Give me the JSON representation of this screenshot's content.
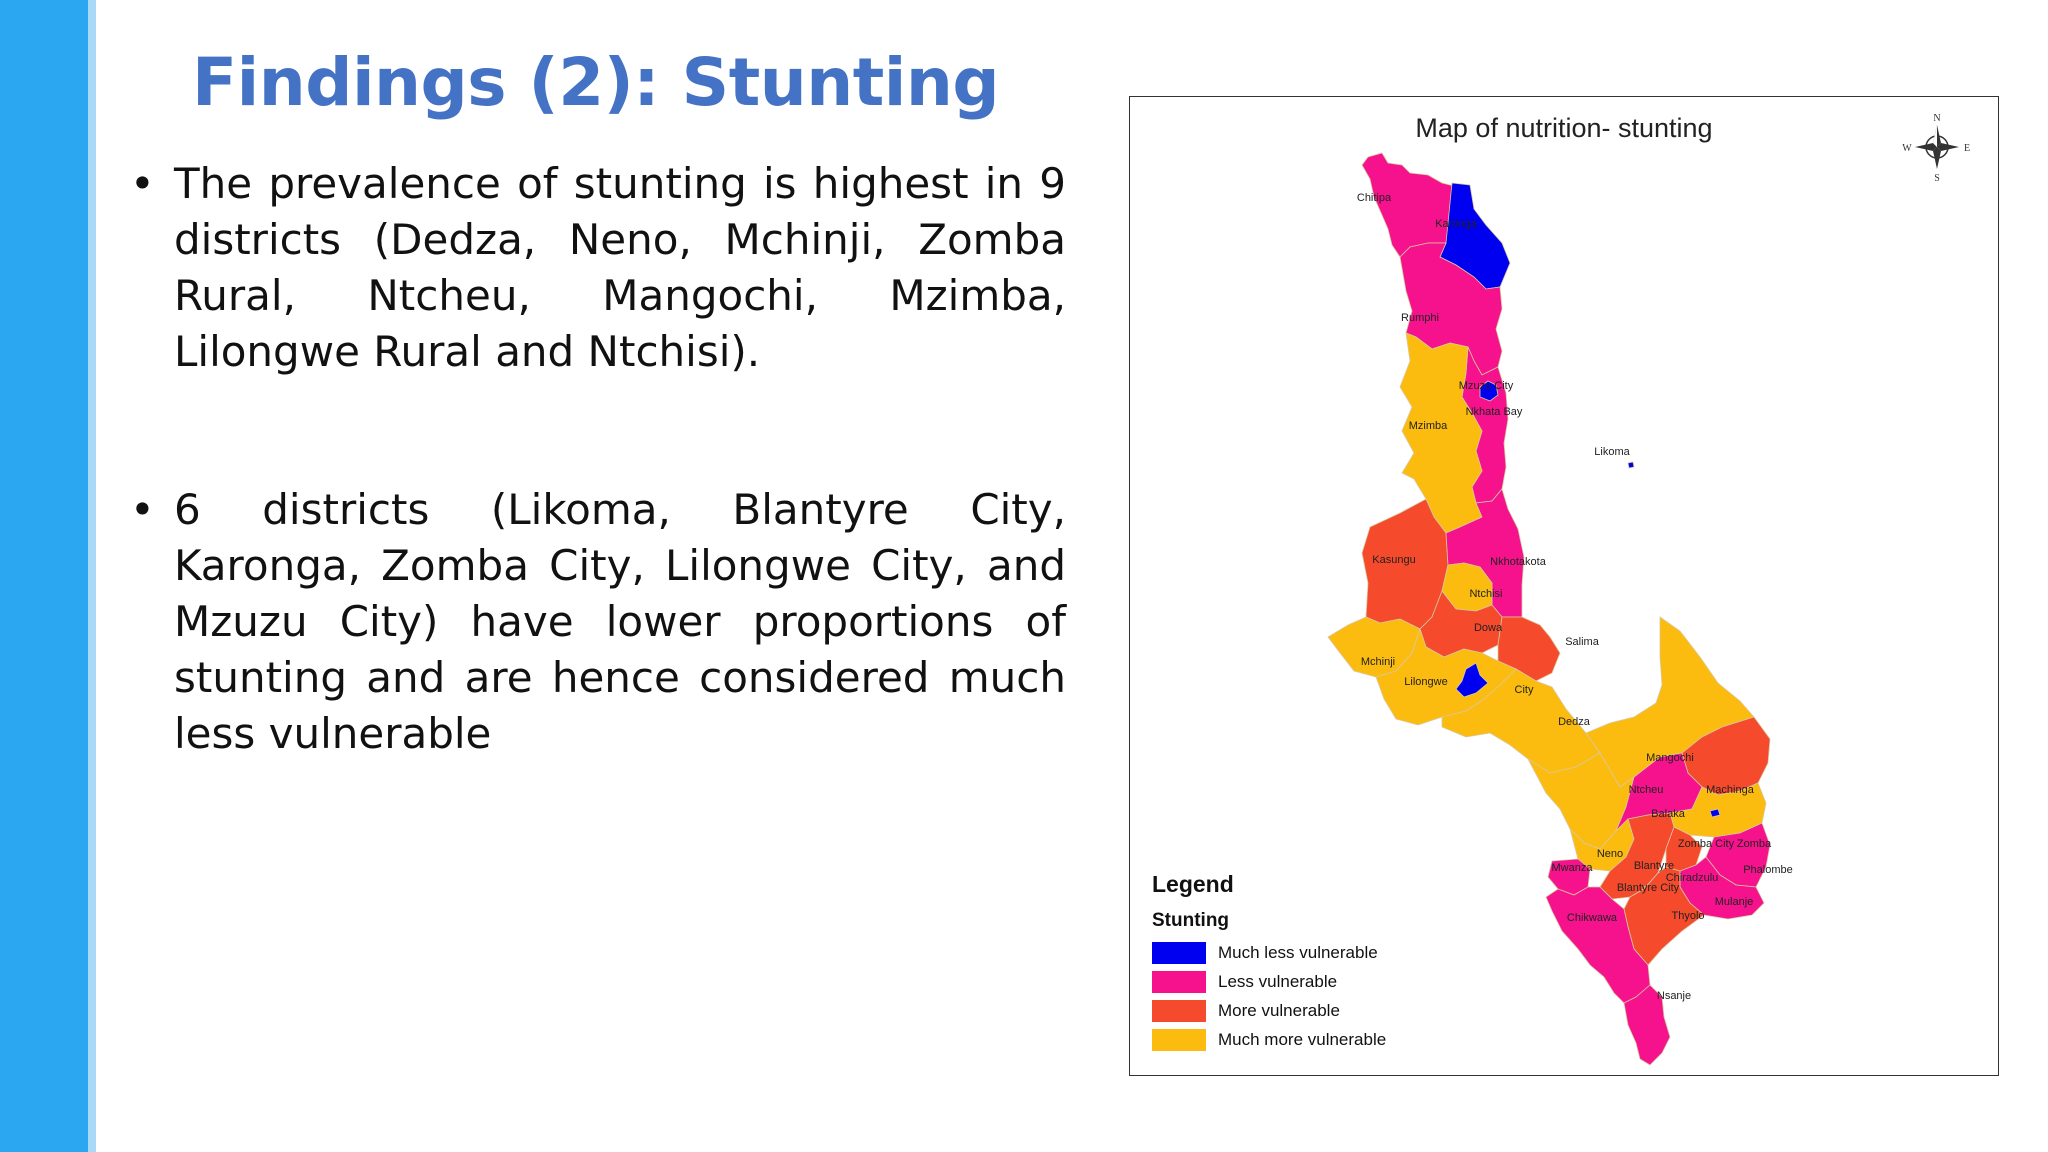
{
  "slide": {
    "title": "Findings (2): Stunting",
    "bullets": [
      "The prevalence of stunting is highest in 9 districts (Dedza, Neno, Mchinji, Zomba Rural, Ntcheu, Mangochi, Mzimba, Lilongwe Rural and Ntchisi).",
      "6 districts (Likoma, Blantyre City, Karonga, Zomba City, Lilongwe City, and Mzuzu City) have lower proportions of stunting and are hence considered much less vulnerable"
    ]
  },
  "map": {
    "title": "Map of nutrition- stunting",
    "compass": {
      "n": "N",
      "s": "S",
      "e": "E",
      "w": "W"
    },
    "legend": {
      "title": "Legend",
      "subtitle": "Stunting",
      "items": [
        {
          "label": "Much less vulnerable",
          "color": "#0000f0"
        },
        {
          "label": "Less vulnerable",
          "color": "#f5128c"
        },
        {
          "label": "More vulnerable",
          "color": "#f54a2c"
        },
        {
          "label": "Much more vulnerable",
          "color": "#fbbc0f"
        }
      ]
    },
    "districts": [
      {
        "name": "Chitipa",
        "category": "Less vulnerable"
      },
      {
        "name": "Karonga",
        "category": "Much less vulnerable"
      },
      {
        "name": "Rumphi",
        "category": "Less vulnerable"
      },
      {
        "name": "Mzuzu City",
        "category": "Much less vulnerable"
      },
      {
        "name": "Nkhata Bay",
        "category": "Less vulnerable"
      },
      {
        "name": "Mzimba",
        "category": "Much more vulnerable"
      },
      {
        "name": "Likoma",
        "category": "Much less vulnerable"
      },
      {
        "name": "Kasungu",
        "category": "More vulnerable"
      },
      {
        "name": "Nkhotakota",
        "category": "Less vulnerable"
      },
      {
        "name": "Ntchisi",
        "category": "Much more vulnerable"
      },
      {
        "name": "Dowa",
        "category": "More vulnerable"
      },
      {
        "name": "Mchinji",
        "category": "Much more vulnerable"
      },
      {
        "name": "Salima",
        "category": "More vulnerable"
      },
      {
        "name": "Lilongwe",
        "category": "Much more vulnerable"
      },
      {
        "name": "City",
        "category": "Much less vulnerable"
      },
      {
        "name": "Dedza",
        "category": "Much more vulnerable"
      },
      {
        "name": "Mangochi",
        "category": "Much more vulnerable"
      },
      {
        "name": "Ntcheu",
        "category": "Much more vulnerable"
      },
      {
        "name": "Machinga",
        "category": "More vulnerable"
      },
      {
        "name": "Balaka",
        "category": "Less vulnerable"
      },
      {
        "name": "Neno",
        "category": "Much more vulnerable"
      },
      {
        "name": "Mwanza",
        "category": "Less vulnerable"
      },
      {
        "name": "Zomba City",
        "category": "Much less vulnerable"
      },
      {
        "name": "Zomba",
        "category": "Much more vulnerable"
      },
      {
        "name": "Blantyre",
        "category": "More vulnerable"
      },
      {
        "name": "Chiradzulu",
        "category": "More vulnerable"
      },
      {
        "name": "Phalombe",
        "category": "Less vulnerable"
      },
      {
        "name": "Blantyre City",
        "category": "Much less vulnerable"
      },
      {
        "name": "Mulanje",
        "category": "Less vulnerable"
      },
      {
        "name": "Chikwawa",
        "category": "Less vulnerable"
      },
      {
        "name": "Thyolo",
        "category": "More vulnerable"
      },
      {
        "name": "Nsanje",
        "category": "Less vulnerable"
      }
    ]
  }
}
